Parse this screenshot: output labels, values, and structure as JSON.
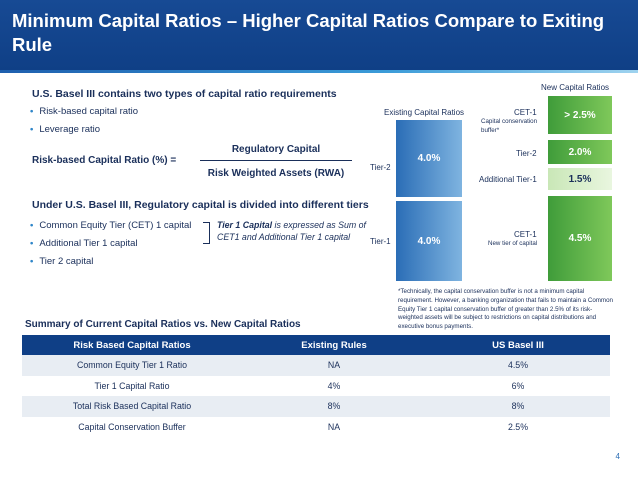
{
  "title": "Minimum Capital Ratios – Higher Capital Ratios Compare to Exiting Rule",
  "basel_heading": "U.S. Basel III contains two types of capital ratio requirements",
  "basel_bullets": [
    "Risk-based capital ratio",
    "Leverage ratio"
  ],
  "formula": {
    "label": "Risk-based Capital Ratio (%)  =",
    "numerator": "Regulatory Capital",
    "denominator": "Risk Weighted Assets (RWA)"
  },
  "divided_heading": "Under U.S. Basel III, Regulatory capital is divided into different tiers",
  "tier_bullets": [
    "Common Equity Tier (CET) 1 capital",
    "Additional Tier 1 capital",
    "Tier 2 capital"
  ],
  "tier1_note": {
    "bold_part": "Tier 1 Capital",
    "rest_line1": " is expressed as Sum of",
    "line2": "CET1 and Additional Tier 1 capital"
  },
  "diagram": {
    "existing_label": "Existing Capital Ratios",
    "new_label": "New Capital Ratios",
    "existing": [
      {
        "side": "Tier-2",
        "value": "4.0%"
      },
      {
        "side": "Tier-1",
        "value": "4.0%"
      }
    ],
    "new": [
      {
        "label": "CET-1",
        "sublabel": "Capital conservation buffer*",
        "value": "> 2.5%"
      },
      {
        "label": "Tier-2",
        "sublabel": "",
        "value": "2.0%"
      },
      {
        "label": "Additional Tier-1",
        "sublabel": "",
        "value": "1.5%"
      },
      {
        "label": "CET-1",
        "sublabel": "New tier of capital",
        "value": "4.5%"
      }
    ],
    "footnote": "*Technically, the capital conservation buffer is not a minimum capital requirement. However, a banking organization that fails to maintain a Common Equity Tier 1 capital conservation buffer of greater than 2.5% of its risk-weighted assets will be subject to restrictions on capital distributions and executive bonus payments."
  },
  "summary_heading": "Summary of Current Capital Ratios vs. New Capital Ratios",
  "table": {
    "headers": [
      "Risk Based Capital Ratios",
      "Existing Rules",
      "US Basel III"
    ],
    "rows": [
      [
        "Common Equity Tier 1 Ratio",
        "NA",
        "4.5%"
      ],
      [
        "Tier 1 Capital Ratio",
        "4%",
        "6%"
      ],
      [
        "Total Risk Based Capital Ratio",
        "8%",
        "8%"
      ],
      [
        "Capital Conservation Buffer",
        "NA",
        "2.5%"
      ]
    ]
  },
  "page_number": "4"
}
